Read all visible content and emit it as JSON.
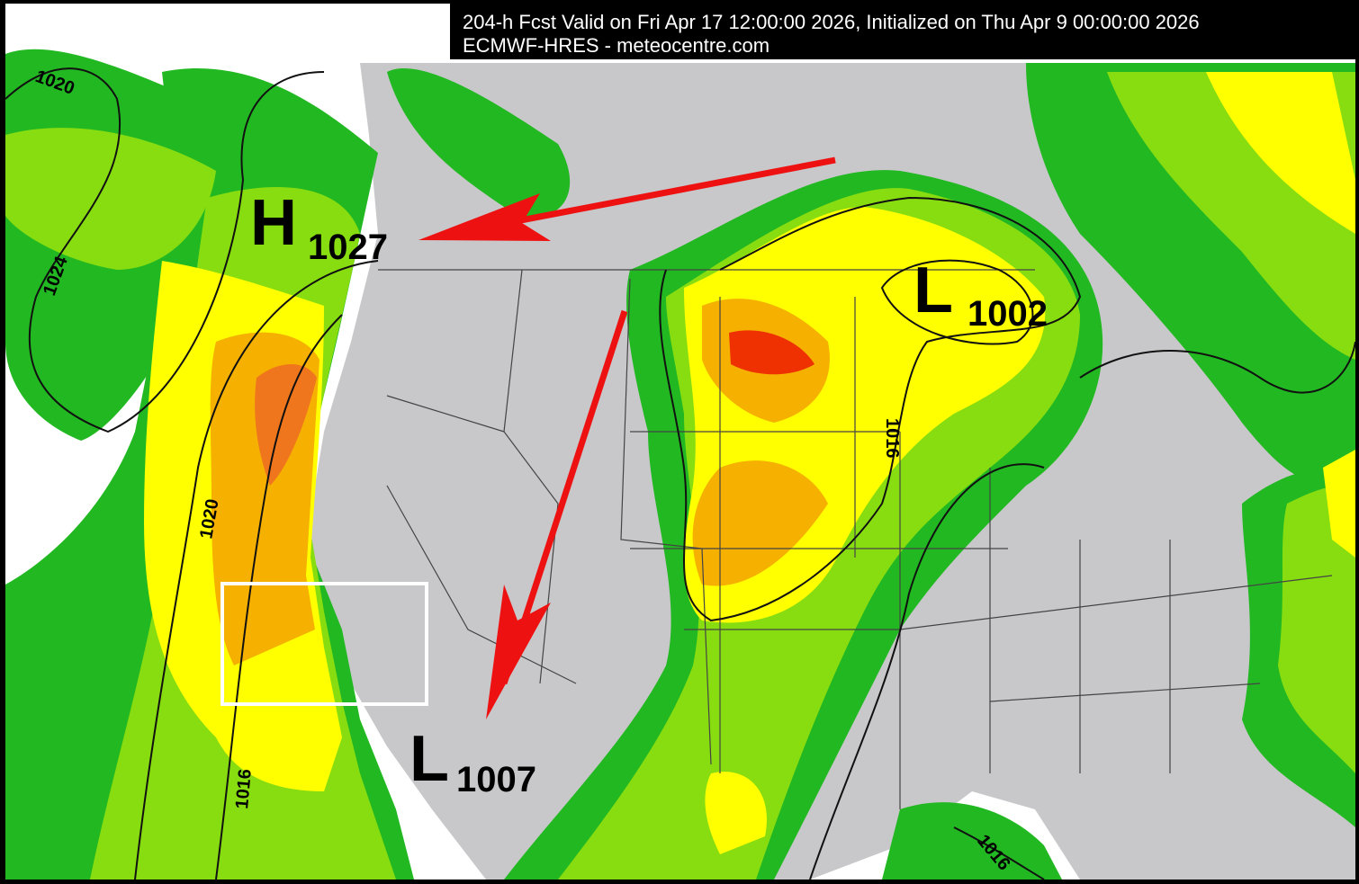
{
  "header": {
    "line1": "204-h Fcst Valid on Fri Apr 17 12:00:00 2026, Initialized on Thu Apr  9 00:00:00 2026",
    "line2": "ECMWF-HRES  - meteocentre.com"
  },
  "pressure_centers": [
    {
      "type": "H",
      "value": "1027"
    },
    {
      "type": "L",
      "value": "1002"
    },
    {
      "type": "L",
      "value": "1007"
    }
  ],
  "isobar_labels": [
    "1020",
    "1024",
    "1020",
    "1016",
    "1016",
    "1016"
  ],
  "colors": {
    "land": "#c8c8ca",
    "ocean": "#ffffff",
    "precip_light": "#22b822",
    "precip_mod": "#88dd11",
    "precip_heavy": "#ffff00",
    "precip_vheavy": "#f5b000",
    "precip_extreme": "#ee2200",
    "arrow": "#ee1111",
    "highlight_box": "#ffffff"
  }
}
